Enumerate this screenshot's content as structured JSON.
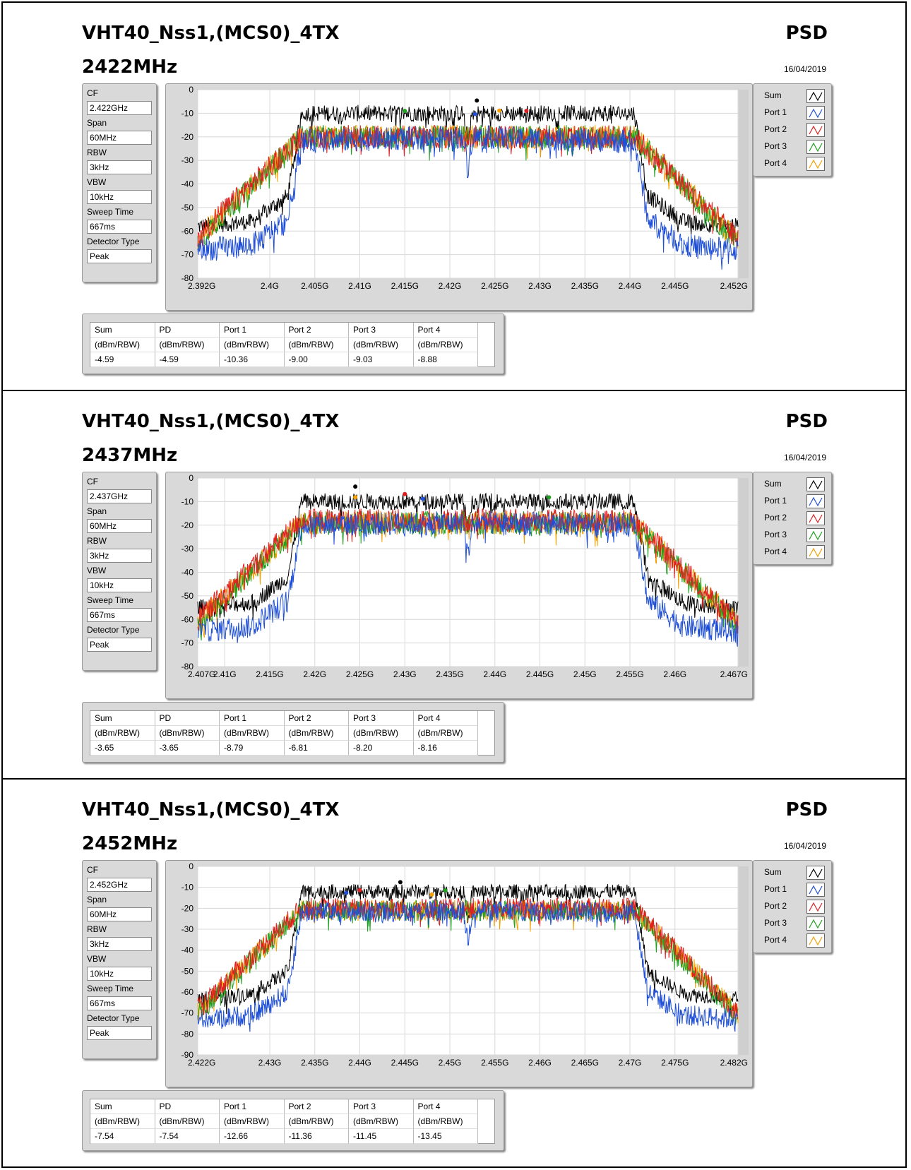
{
  "param_labels": [
    "CF",
    "Span",
    "RBW",
    "VBW",
    "Sweep Time",
    "Detector Type"
  ],
  "legend_labels": [
    "Sum",
    "Port 1",
    "Port 2",
    "Port 3",
    "Port 4"
  ],
  "series_colors": [
    "#000000",
    "#1f4fd6",
    "#e02020",
    "#20a020",
    "#f5a000"
  ],
  "table_headers": [
    "Sum",
    "PD",
    "Port 1",
    "Port 2",
    "Port 3",
    "Port 4"
  ],
  "table_units": [
    "(dBm/RBW)",
    "(dBm/RBW)",
    "(dBm/RBW)",
    "(dBm/RBW)",
    "(dBm/RBW)",
    "(dBm/RBW)"
  ],
  "panels": [
    {
      "title": "VHT40_Nss1,(MCS0)_4TX",
      "freq": "2422MHz",
      "psd": "PSD",
      "date": "16/04/2019",
      "params": [
        "2.422GHz",
        "60MHz",
        "3kHz",
        "10kHz",
        "667ms",
        "Peak"
      ],
      "values": [
        "-4.59",
        "-4.59",
        "-10.36",
        "-9.00",
        "-9.03",
        "-8.88"
      ]
    },
    {
      "title": "VHT40_Nss1,(MCS0)_4TX",
      "freq": "2437MHz",
      "psd": "PSD",
      "date": "16/04/2019",
      "params": [
        "2.437GHz",
        "60MHz",
        "3kHz",
        "10kHz",
        "667ms",
        "Peak"
      ],
      "values": [
        "-3.65",
        "-3.65",
        "-8.79",
        "-6.81",
        "-8.20",
        "-8.16"
      ]
    },
    {
      "title": "VHT40_Nss1,(MCS0)_4TX",
      "freq": "2452MHz",
      "psd": "PSD",
      "date": "16/04/2019",
      "params": [
        "2.452GHz",
        "60MHz",
        "3kHz",
        "10kHz",
        "667ms",
        "Peak"
      ],
      "values": [
        "-7.54",
        "-7.54",
        "-12.66",
        "-11.36",
        "-11.45",
        "-13.45"
      ]
    }
  ],
  "chart_data": [
    {
      "type": "line",
      "xlim": [
        2.392,
        2.452
      ],
      "ylim": [
        -80,
        0
      ],
      "yticks": [
        0,
        -10,
        -20,
        -30,
        -40,
        -50,
        -60,
        -70,
        -80
      ],
      "ytick_labels": [
        "0",
        "-10",
        "-20",
        "-30",
        "-40",
        "-50",
        "-60",
        "-70",
        "-80"
      ],
      "xticks": [
        2.392,
        2.4,
        2.405,
        2.41,
        2.415,
        2.42,
        2.425,
        2.43,
        2.435,
        2.44,
        2.445,
        2.452
      ],
      "xtick_labels": [
        "2.392G",
        "2.4G",
        "2.405G",
        "2.41G",
        "2.415G",
        "2.42G",
        "2.425G",
        "2.43G",
        "2.435G",
        "2.44G",
        "2.445G",
        "2.452G"
      ],
      "grid": true,
      "legend": "right",
      "series": [
        {
          "name": "Sum",
          "points": [
            [
              2.392,
              -58
            ],
            [
              2.398,
              -56
            ],
            [
              2.402,
              -45
            ],
            [
              2.4035,
              -10
            ],
            [
              2.4215,
              -10
            ],
            [
              2.422,
              -22
            ],
            [
              2.4225,
              -10
            ],
            [
              2.4405,
              -10
            ],
            [
              2.442,
              -45
            ],
            [
              2.446,
              -56
            ],
            [
              2.452,
              -58
            ]
          ],
          "peak": [
            2.423,
            -4.59
          ]
        },
        {
          "name": "Port 1",
          "points": [
            [
              2.392,
              -68
            ],
            [
              2.398,
              -66
            ],
            [
              2.402,
              -55
            ],
            [
              2.4035,
              -22
            ],
            [
              2.4215,
              -20
            ],
            [
              2.422,
              -33
            ],
            [
              2.4225,
              -20
            ],
            [
              2.4405,
              -22
            ],
            [
              2.442,
              -55
            ],
            [
              2.446,
              -66
            ],
            [
              2.452,
              -68
            ]
          ],
          "peak": [
            2.4228,
            -10.36
          ]
        },
        {
          "name": "Port 2",
          "points": [
            [
              2.392,
              -62
            ],
            [
              2.4035,
              -20
            ],
            [
              2.4405,
              -20
            ],
            [
              2.452,
              -63
            ]
          ],
          "peak": [
            2.4285,
            -9.0
          ]
        },
        {
          "name": "Port 3",
          "points": [
            [
              2.392,
              -64
            ],
            [
              2.4035,
              -20
            ],
            [
              2.4405,
              -20
            ],
            [
              2.452,
              -65
            ]
          ],
          "peak": [
            2.415,
            -9.03
          ]
        },
        {
          "name": "Port 4",
          "points": [
            [
              2.392,
              -63
            ],
            [
              2.4035,
              -20
            ],
            [
              2.4405,
              -20
            ],
            [
              2.452,
              -64
            ]
          ],
          "peak": [
            2.4255,
            -8.88
          ]
        }
      ]
    },
    {
      "type": "line",
      "xlim": [
        2.407,
        2.467
      ],
      "ylim": [
        -80,
        0
      ],
      "yticks": [
        0,
        -10,
        -20,
        -30,
        -40,
        -50,
        -60,
        -70,
        -80
      ],
      "ytick_labels": [
        "0",
        "-10",
        "-20",
        "-30",
        "-40",
        "-50",
        "-60",
        "-70",
        "-80"
      ],
      "xticks": [
        2.407,
        2.41,
        2.415,
        2.42,
        2.425,
        2.43,
        2.435,
        2.44,
        2.445,
        2.45,
        2.455,
        2.46,
        2.467
      ],
      "xtick_labels": [
        "2.407G",
        "2.41G",
        "2.415G",
        "2.42G",
        "2.425G",
        "2.43G",
        "2.435G",
        "2.44G",
        "2.445G",
        "2.45G",
        "2.455G",
        "2.46G",
        "2.467G"
      ],
      "grid": true,
      "legend": "right",
      "series": [
        {
          "name": "Sum",
          "points": [
            [
              2.407,
              -55
            ],
            [
              2.413,
              -53
            ],
            [
              2.417,
              -42
            ],
            [
              2.4185,
              -10
            ],
            [
              2.4365,
              -10
            ],
            [
              2.437,
              -22
            ],
            [
              2.4375,
              -10
            ],
            [
              2.4555,
              -10
            ],
            [
              2.457,
              -42
            ],
            [
              2.461,
              -53
            ],
            [
              2.467,
              -55
            ]
          ],
          "peak": [
            2.4245,
            -3.65
          ]
        },
        {
          "name": "Port 1",
          "points": [
            [
              2.407,
              -65
            ],
            [
              2.413,
              -63
            ],
            [
              2.417,
              -52
            ],
            [
              2.4185,
              -20
            ],
            [
              2.4365,
              -19
            ],
            [
              2.437,
              -33
            ],
            [
              2.4375,
              -19
            ],
            [
              2.4555,
              -20
            ],
            [
              2.457,
              -52
            ],
            [
              2.461,
              -63
            ],
            [
              2.467,
              -65
            ]
          ],
          "peak": [
            2.432,
            -8.79
          ]
        },
        {
          "name": "Port 2",
          "points": [
            [
              2.407,
              -60
            ],
            [
              2.4185,
              -18
            ],
            [
              2.4555,
              -18
            ],
            [
              2.467,
              -62
            ]
          ],
          "peak": [
            2.43,
            -6.81
          ]
        },
        {
          "name": "Port 3",
          "points": [
            [
              2.407,
              -62
            ],
            [
              2.4185,
              -19
            ],
            [
              2.4555,
              -19
            ],
            [
              2.467,
              -63
            ]
          ],
          "peak": [
            2.446,
            -8.2
          ]
        },
        {
          "name": "Port 4",
          "points": [
            [
              2.407,
              -61
            ],
            [
              2.4185,
              -19
            ],
            [
              2.4555,
              -19
            ],
            [
              2.467,
              -62
            ]
          ],
          "peak": [
            2.4245,
            -8.16
          ]
        }
      ]
    },
    {
      "type": "line",
      "xlim": [
        2.422,
        2.482
      ],
      "ylim": [
        -90,
        0
      ],
      "yticks": [
        0,
        -10,
        -20,
        -30,
        -40,
        -50,
        -60,
        -70,
        -80,
        -90
      ],
      "ytick_labels": [
        "0",
        "-10",
        "-20",
        "-30",
        "-40",
        "-50",
        "-60",
        "-70",
        "-80",
        "-90"
      ],
      "xticks": [
        2.422,
        2.43,
        2.435,
        2.44,
        2.445,
        2.45,
        2.455,
        2.46,
        2.465,
        2.47,
        2.475,
        2.482
      ],
      "xtick_labels": [
        "2.422G",
        "2.43G",
        "2.435G",
        "2.44G",
        "2.445G",
        "2.45G",
        "2.455G",
        "2.46G",
        "2.465G",
        "2.47G",
        "2.475G",
        "2.482G"
      ],
      "grid": true,
      "legend": "right",
      "series": [
        {
          "name": "Sum",
          "points": [
            [
              2.422,
              -63
            ],
            [
              2.428,
              -61
            ],
            [
              2.432,
              -50
            ],
            [
              2.4335,
              -12
            ],
            [
              2.4515,
              -12
            ],
            [
              2.452,
              -25
            ],
            [
              2.4525,
              -12
            ],
            [
              2.4705,
              -12
            ],
            [
              2.472,
              -50
            ],
            [
              2.476,
              -61
            ],
            [
              2.482,
              -63
            ]
          ],
          "peak": [
            2.4445,
            -7.54
          ]
        },
        {
          "name": "Port 1",
          "points": [
            [
              2.422,
              -73
            ],
            [
              2.428,
              -71
            ],
            [
              2.432,
              -60
            ],
            [
              2.4335,
              -22
            ],
            [
              2.4515,
              -21
            ],
            [
              2.452,
              -36
            ],
            [
              2.4525,
              -21
            ],
            [
              2.4705,
              -22
            ],
            [
              2.472,
              -60
            ],
            [
              2.476,
              -71
            ],
            [
              2.482,
              -73
            ]
          ],
          "peak": [
            2.4385,
            -12.66
          ]
        },
        {
          "name": "Port 2",
          "points": [
            [
              2.422,
              -68
            ],
            [
              2.4335,
              -20
            ],
            [
              2.4705,
              -20
            ],
            [
              2.482,
              -70
            ]
          ],
          "peak": [
            2.44,
            -11.36
          ]
        },
        {
          "name": "Port 3",
          "points": [
            [
              2.422,
              -70
            ],
            [
              2.4335,
              -21
            ],
            [
              2.4705,
              -21
            ],
            [
              2.482,
              -72
            ]
          ],
          "peak": [
            2.4495,
            -11.45
          ]
        },
        {
          "name": "Port 4",
          "points": [
            [
              2.422,
              -69
            ],
            [
              2.4335,
              -21
            ],
            [
              2.4705,
              -21
            ],
            [
              2.482,
              -70
            ]
          ],
          "peak": [
            2.448,
            -13.45
          ]
        }
      ]
    }
  ]
}
